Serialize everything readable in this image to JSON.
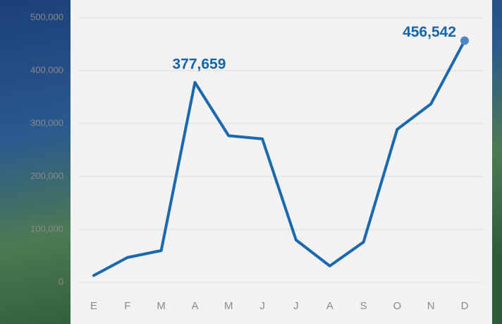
{
  "chart_data": {
    "type": "line",
    "categories": [
      "E",
      "F",
      "M",
      "A",
      "M",
      "J",
      "J",
      "A",
      "S",
      "O",
      "N",
      "D"
    ],
    "series": [
      {
        "color": "#1a68ad",
        "values": [
          13000,
          47000,
          60000,
          377659,
          277000,
          271000,
          80000,
          31000,
          76000,
          289000,
          337000,
          456542
        ],
        "value_labels": [
          null,
          null,
          null,
          "377,659",
          null,
          null,
          null,
          null,
          null,
          null,
          null,
          "456,542"
        ]
      }
    ],
    "ylim": [
      0,
      500000
    ],
    "yticks": [
      0,
      {
        "value": 100000,
        "label": "100,000"
      },
      {
        "value": 200000,
        "label": "200,000"
      },
      {
        "value": 300000,
        "label": "300,000"
      },
      {
        "value": 400000,
        "label": "400,000"
      },
      {
        "value": 500000,
        "label": "500,000"
      }
    ],
    "grid": true
  }
}
